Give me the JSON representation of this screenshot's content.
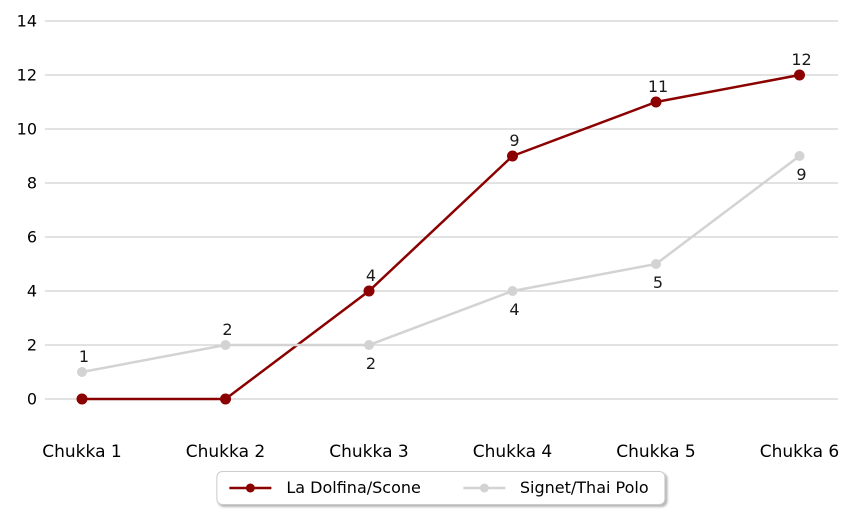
{
  "chart_data": {
    "type": "line",
    "categories": [
      "Chukka 1",
      "Chukka 2",
      "Chukka 3",
      "Chukka 4",
      "Chukka 5",
      "Chukka 6"
    ],
    "series": [
      {
        "name": "La Dolfina/Scone",
        "color": "#8B0000",
        "values": [
          0,
          0,
          4,
          9,
          11,
          12
        ],
        "label_positions": [
          "none",
          "none",
          "above",
          "above",
          "above",
          "above"
        ]
      },
      {
        "name": "Signet/Thai Polo",
        "color": "#D3D3D3",
        "values": [
          1,
          2,
          2,
          4,
          5,
          9
        ],
        "label_positions": [
          "above",
          "above",
          "below",
          "below",
          "below",
          "below"
        ]
      }
    ],
    "title": "",
    "xlabel": "",
    "ylabel": "",
    "ylim": [
      0,
      14
    ],
    "yticks": [
      0,
      2,
      4,
      6,
      8,
      10,
      12,
      14
    ],
    "grid": "horizontal",
    "grid_color": "#c4c4c4",
    "tick_color": "#000000",
    "data_label_color": "#1a1a1a",
    "legend_position": "bottom-center"
  }
}
